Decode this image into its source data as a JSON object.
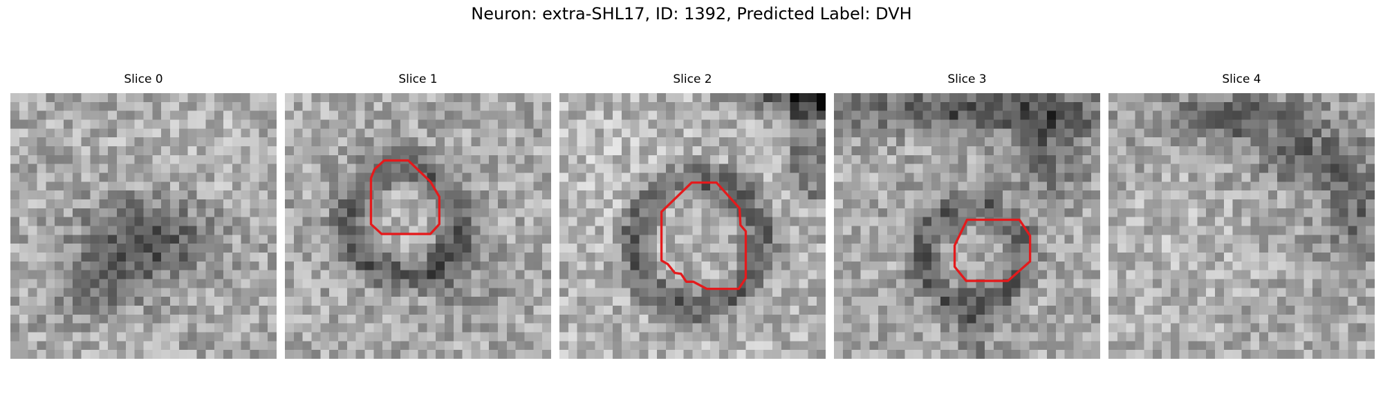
{
  "figure": {
    "suptitle": "Neuron: extra-SHL17, ID: 1392, Predicted Label: DVH"
  },
  "slices": [
    {
      "title": "Slice 0",
      "has_contour": false
    },
    {
      "title": "Slice 1",
      "has_contour": true
    },
    {
      "title": "Slice 2",
      "has_contour": true
    },
    {
      "title": "Slice 3",
      "has_contour": true
    },
    {
      "title": "Slice 4",
      "has_contour": false
    }
  ],
  "colors": {
    "contour": "#e41a1c",
    "background": "#ffffff"
  }
}
